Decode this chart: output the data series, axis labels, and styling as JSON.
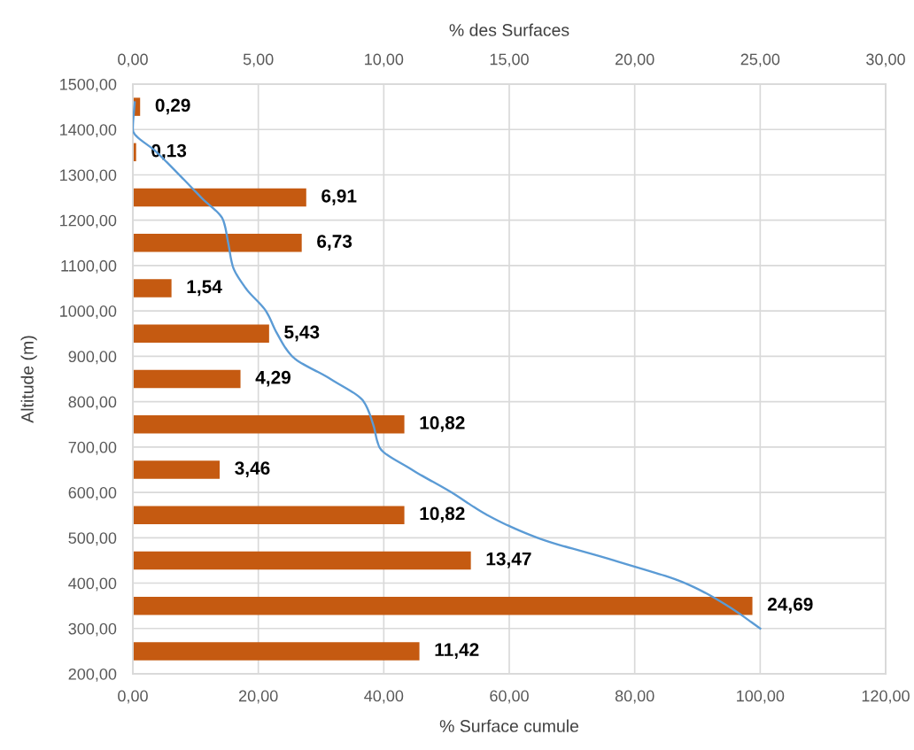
{
  "chart_data": {
    "type": "bar",
    "orientation": "horizontal",
    "xlabel": "% Surface cumule",
    "x2label": "% des Surfaces",
    "ylabel": "Altitude (m)",
    "series": [
      {
        "axis": "x2",
        "color": "#c55a11",
        "x": [
          250,
          350,
          450,
          550,
          650,
          750,
          850,
          950,
          1050,
          1150,
          1250,
          1350,
          1450
        ],
        "values": [
          11.42,
          24.69,
          13.47,
          10.82,
          3.46,
          10.82,
          4.29,
          5.43,
          1.54,
          6.73,
          6.91,
          0.13,
          0.29
        ],
        "value_labels": [
          "11,42",
          "24,69",
          "13,47",
          "10,82",
          "3,46",
          "10,82",
          "4,29",
          "5,43",
          "1,54",
          "6,73",
          "6,91",
          "0,13",
          "0,29"
        ]
      },
      {
        "type": "line",
        "color": "#5b9bd5",
        "x": [
          300,
          350,
          400,
          450,
          500,
          550,
          600,
          650,
          700,
          750,
          800,
          850,
          900,
          950,
          1000,
          1050,
          1100,
          1150,
          1200,
          1250,
          1300,
          1350,
          1400,
          1460
        ],
        "values": [
          100,
          94.8,
          88.0,
          76.7,
          64.5,
          56.5,
          50.8,
          44.5,
          39.3,
          38.3,
          36.8,
          31.5,
          25.4,
          23.0,
          21.2,
          18.0,
          15.9,
          15.2,
          14.4,
          10.9,
          7.4,
          3.8,
          0,
          0.3
        ]
      }
    ],
    "xlim": [
      0,
      120
    ],
    "xticks": [
      {
        "value": 0,
        "label": "0,00"
      },
      {
        "value": 20,
        "label": "20,00"
      },
      {
        "value": 40,
        "label": "40,00"
      },
      {
        "value": 60,
        "label": "60,00"
      },
      {
        "value": 80,
        "label": "80,00"
      },
      {
        "value": 100,
        "label": "100,00"
      },
      {
        "value": 120,
        "label": "120,00"
      }
    ],
    "x2lim": [
      0,
      30
    ],
    "x2ticks": [
      {
        "value": 0,
        "label": "0,00"
      },
      {
        "value": 5,
        "label": "5,00"
      },
      {
        "value": 10,
        "label": "10,00"
      },
      {
        "value": 15,
        "label": "15,00"
      },
      {
        "value": 20,
        "label": "20,00"
      },
      {
        "value": 25,
        "label": "25,00"
      },
      {
        "value": 30,
        "label": "30,00"
      }
    ],
    "ylim": [
      200,
      1500
    ],
    "yticks": [
      {
        "value": 200,
        "label": "200,00"
      },
      {
        "value": 300,
        "label": "300,00"
      },
      {
        "value": 400,
        "label": "400,00"
      },
      {
        "value": 500,
        "label": "500,00"
      },
      {
        "value": 600,
        "label": "600,00"
      },
      {
        "value": 700,
        "label": "700,00"
      },
      {
        "value": 800,
        "label": "800,00"
      },
      {
        "value": 900,
        "label": "900,00"
      },
      {
        "value": 1000,
        "label": "1000,00"
      },
      {
        "value": 1100,
        "label": "1100,00"
      },
      {
        "value": 1200,
        "label": "1200,00"
      },
      {
        "value": 1300,
        "label": "1300,00"
      },
      {
        "value": 1400,
        "label": "1400,00"
      },
      {
        "value": 1500,
        "label": "1500,00"
      }
    ],
    "grid": true
  }
}
